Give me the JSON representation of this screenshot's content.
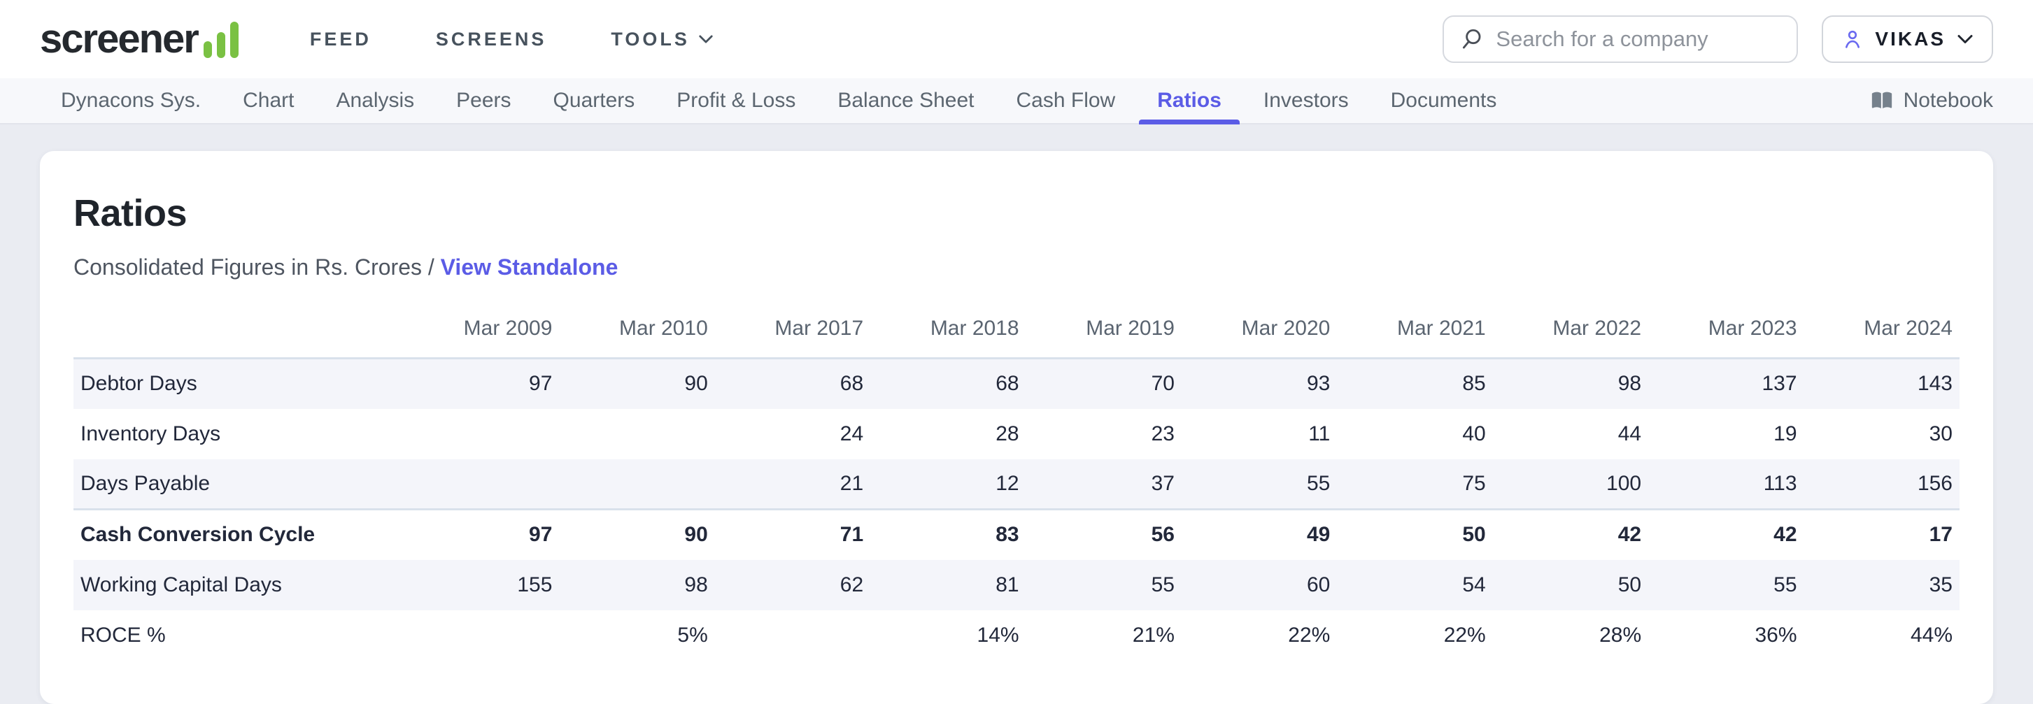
{
  "colors": {
    "accent": "#5B5CE6",
    "brand_green": "#7AC143",
    "strong_border": "#D9E1EB",
    "page_bg": "#EAECF2",
    "stripe_bg": "#F4F5FA"
  },
  "header": {
    "logo_text": "screener",
    "nav": [
      {
        "label": "FEED",
        "chevron": false
      },
      {
        "label": "SCREENS",
        "chevron": false
      },
      {
        "label": "TOOLS",
        "chevron": true
      }
    ],
    "search": {
      "placeholder": "Search for a company"
    },
    "user": {
      "name": "VIKAS"
    }
  },
  "icons": {
    "search": "magnifier",
    "person": "user-outline",
    "chevron": "chevron-down",
    "book": "open-book",
    "logo_bars": "bar-chart"
  },
  "subnav": {
    "company": "Dynacons Sys.",
    "tabs": [
      "Chart",
      "Analysis",
      "Peers",
      "Quarters",
      "Profit & Loss",
      "Balance Sheet",
      "Cash Flow",
      "Ratios",
      "Investors",
      "Documents"
    ],
    "active_tab": "Ratios",
    "notebook_label": "Notebook"
  },
  "main": {
    "title": "Ratios",
    "subtitle_prefix": "Consolidated Figures in Rs. Crores /",
    "standalone_link": "View Standalone"
  },
  "table": {
    "type": "table",
    "columns": [
      "Mar 2009",
      "Mar 2010",
      "Mar 2017",
      "Mar 2018",
      "Mar 2019",
      "Mar 2020",
      "Mar 2021",
      "Mar 2022",
      "Mar 2023",
      "Mar 2024"
    ],
    "rows": [
      {
        "label": "Debtor Days",
        "bold": false,
        "values": [
          "97",
          "90",
          "68",
          "68",
          "70",
          "93",
          "85",
          "98",
          "137",
          "143"
        ]
      },
      {
        "label": "Inventory Days",
        "bold": false,
        "values": [
          "",
          "",
          "24",
          "28",
          "23",
          "11",
          "40",
          "44",
          "19",
          "30"
        ]
      },
      {
        "label": "Days Payable",
        "bold": false,
        "values": [
          "",
          "",
          "21",
          "12",
          "37",
          "55",
          "75",
          "100",
          "113",
          "156"
        ]
      },
      {
        "label": "Cash Conversion Cycle",
        "bold": true,
        "values": [
          "97",
          "90",
          "71",
          "83",
          "56",
          "49",
          "50",
          "42",
          "42",
          "17"
        ]
      },
      {
        "label": "Working Capital Days",
        "bold": false,
        "values": [
          "155",
          "98",
          "62",
          "81",
          "55",
          "60",
          "54",
          "50",
          "55",
          "35"
        ]
      },
      {
        "label": "ROCE %",
        "bold": false,
        "values": [
          "",
          "5%",
          "",
          "14%",
          "21%",
          "22%",
          "22%",
          "28%",
          "36%",
          "44%"
        ]
      }
    ]
  }
}
